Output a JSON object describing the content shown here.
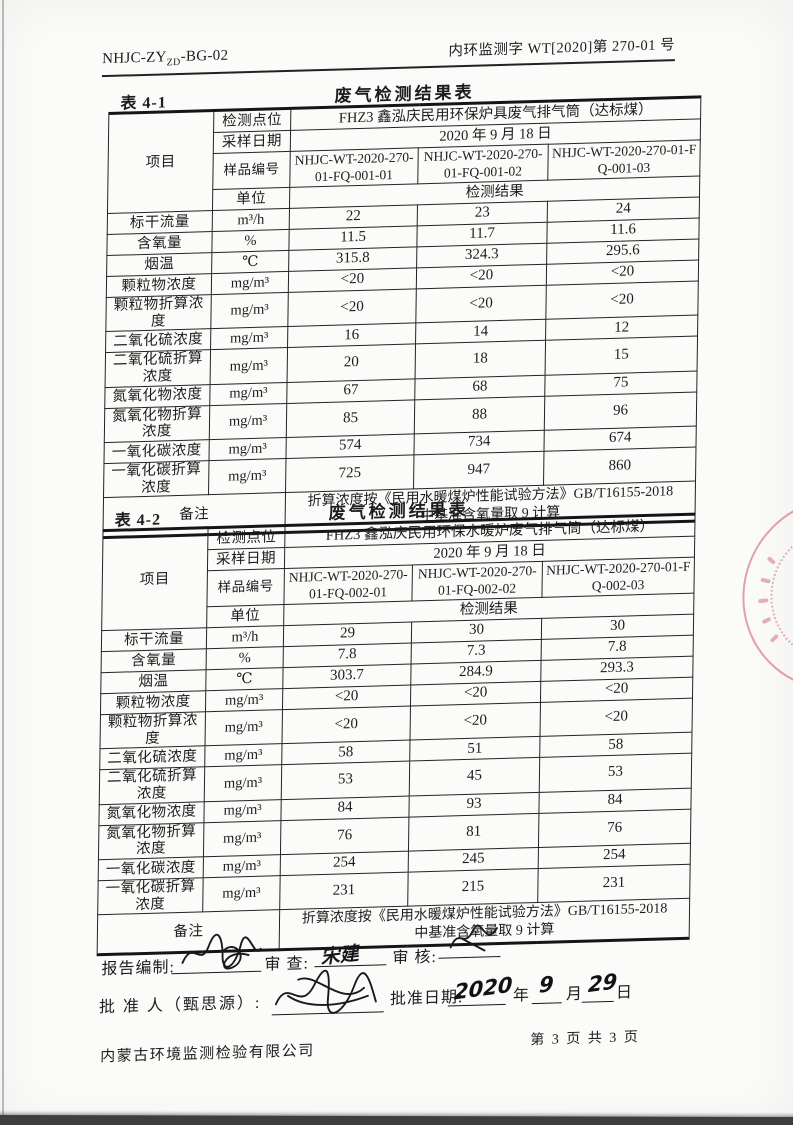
{
  "page": {
    "doc_code": {
      "prefix": "NHJC-ZY",
      "sub": "ZD",
      "suffix": "-BG-02"
    },
    "doc_number": "内环监测字 WT[2020]第 270-01 号",
    "footer_company": "内蒙古环境监测检验有限公司",
    "page_indicator": "第 3 页 共 3 页"
  },
  "accent_colors": {
    "ink": "#1c1c1c",
    "seal_red": "#cd465c"
  },
  "tables": [
    {
      "label": "表 4-1",
      "title": "废气检测结果表",
      "item_label": "项目",
      "point_label": "检测点位",
      "point": "FHZ3 鑫泓庆民用环保炉具废气排气筒（达标煤）",
      "date_label": "采样日期",
      "date": "2020 年 9 月 18 日",
      "sample_label": "样品编号",
      "samples": [
        "NHJC-WT-2020-270-01-FQ-001-01",
        "NHJC-WT-2020-270-01-FQ-001-02",
        "NHJC-WT-2020-270-01-FQ-001-03"
      ],
      "unit_label": "单位",
      "result_label": "检测结果",
      "rows": [
        {
          "name": "标干流量",
          "unit": "m³/h",
          "values": [
            "22",
            "23",
            "24"
          ]
        },
        {
          "name": "含氧量",
          "unit": "%",
          "values": [
            "11.5",
            "11.7",
            "11.6"
          ]
        },
        {
          "name": "烟温",
          "unit": "℃",
          "values": [
            "315.8",
            "324.3",
            "295.6"
          ]
        },
        {
          "name": "颗粒物浓度",
          "unit": "mg/m³",
          "values": [
            "<20",
            "<20",
            "<20"
          ]
        },
        {
          "name": "颗粒物折算浓度",
          "unit": "mg/m³",
          "values": [
            "<20",
            "<20",
            "<20"
          ]
        },
        {
          "name": "二氧化硫浓度",
          "unit": "mg/m³",
          "values": [
            "16",
            "14",
            "12"
          ]
        },
        {
          "name": "二氧化硫折算浓度",
          "unit": "mg/m³",
          "values": [
            "20",
            "18",
            "15"
          ]
        },
        {
          "name": "氮氧化物浓度",
          "unit": "mg/m³",
          "values": [
            "67",
            "68",
            "75"
          ]
        },
        {
          "name": "氮氧化物折算浓度",
          "unit": "mg/m³",
          "values": [
            "85",
            "88",
            "96"
          ]
        },
        {
          "name": "一氧化碳浓度",
          "unit": "mg/m³",
          "values": [
            "574",
            "734",
            "674"
          ]
        },
        {
          "name": "一氧化碳折算浓度",
          "unit": "mg/m³",
          "values": [
            "725",
            "947",
            "860"
          ]
        }
      ],
      "remark_label": "备注",
      "remark_line1": "折算浓度按《民用水暖煤炉性能试验方法》GB/T16155-2018",
      "remark_line2": "中基准含氧量取 9 计算"
    },
    {
      "label": "表 4-2",
      "title": "废气检测结果表",
      "item_label": "项目",
      "point_label": "检测点位",
      "point": "FHZ3 鑫泓庆民用环保水暖炉废气排气筒（达标煤）",
      "date_label": "采样日期",
      "date": "2020 年 9 月 18 日",
      "sample_label": "样品编号",
      "samples": [
        "NHJC-WT-2020-270-01-FQ-002-01",
        "NHJC-WT-2020-270-01-FQ-002-02",
        "NHJC-WT-2020-270-01-FQ-002-03"
      ],
      "unit_label": "单位",
      "result_label": "检测结果",
      "rows": [
        {
          "name": "标干流量",
          "unit": "m³/h",
          "values": [
            "29",
            "30",
            "30"
          ]
        },
        {
          "name": "含氧量",
          "unit": "%",
          "values": [
            "7.8",
            "7.3",
            "7.8"
          ]
        },
        {
          "name": "烟温",
          "unit": "℃",
          "values": [
            "303.7",
            "284.9",
            "293.3"
          ]
        },
        {
          "name": "颗粒物浓度",
          "unit": "mg/m³",
          "values": [
            "<20",
            "<20",
            "<20"
          ]
        },
        {
          "name": "颗粒物折算浓度",
          "unit": "mg/m³",
          "values": [
            "<20",
            "<20",
            "<20"
          ]
        },
        {
          "name": "二氧化硫浓度",
          "unit": "mg/m³",
          "values": [
            "58",
            "51",
            "58"
          ]
        },
        {
          "name": "二氧化硫折算浓度",
          "unit": "mg/m³",
          "values": [
            "53",
            "45",
            "53"
          ]
        },
        {
          "name": "氮氧化物浓度",
          "unit": "mg/m³",
          "values": [
            "84",
            "93",
            "84"
          ]
        },
        {
          "name": "氮氧化物折算浓度",
          "unit": "mg/m³",
          "values": [
            "76",
            "81",
            "76"
          ]
        },
        {
          "name": "一氧化碳浓度",
          "unit": "mg/m³",
          "values": [
            "254",
            "245",
            "254"
          ]
        },
        {
          "name": "一氧化碳折算浓度",
          "unit": "mg/m³",
          "values": [
            "231",
            "215",
            "231"
          ]
        }
      ],
      "remark_label": "备注",
      "remark_line1": "折算浓度按《民用水暖煤炉性能试验方法》GB/T16155-2018",
      "remark_line2": "中基准含氧量取 9 计算"
    }
  ],
  "signature": {
    "prepared_label": "报告编制:",
    "review_label": "审 查:",
    "review_name": "宋建",
    "audit_label": "审 核:",
    "approver_label": "批 准 人（甄思源）:",
    "approve_date_label": "批准日期:",
    "date_year": "2020",
    "year_char": "年",
    "date_month": "9",
    "month_char": "月",
    "date_day": "29",
    "day_char": "日"
  }
}
